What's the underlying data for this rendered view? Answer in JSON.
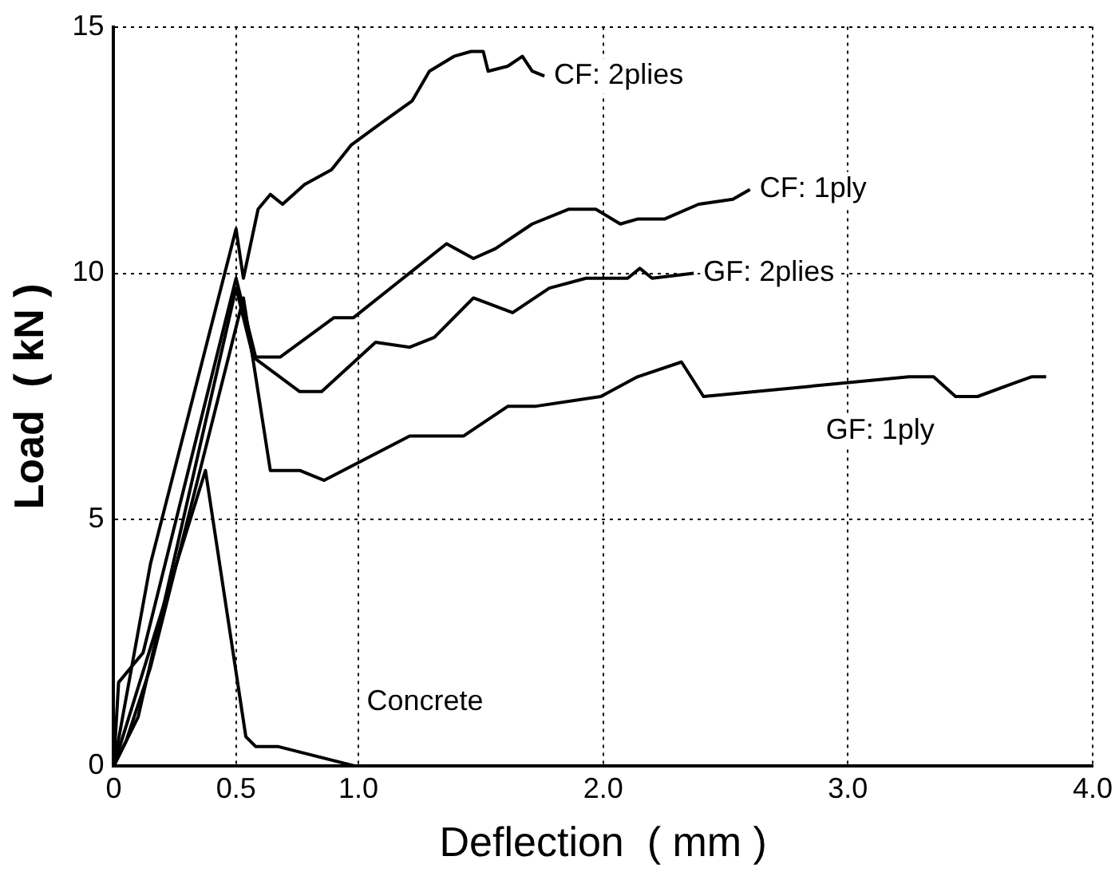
{
  "chart_data": {
    "type": "line",
    "xlabel": "Deflection  ( mm )",
    "ylabel": "Load  ( kN )",
    "xlim": [
      0,
      4
    ],
    "ylim": [
      0,
      15
    ],
    "xticks": [
      0,
      0.5,
      {
        "value": 1,
        "label": "1.0"
      },
      {
        "value": 2,
        "label": "2.0"
      },
      {
        "value": 3,
        "label": "3.0"
      },
      {
        "value": 4,
        "label": "4.0"
      }
    ],
    "yticks": [
      0,
      5,
      10,
      15
    ],
    "grid": true,
    "legend": false,
    "marker": "none",
    "line_style": "solid",
    "series": [
      {
        "name": "CF: 2plies",
        "color": "#000000",
        "x": [
          0,
          0.15,
          0.5,
          0.53,
          0.59,
          0.64,
          0.69,
          0.78,
          0.89,
          0.97,
          1.08,
          1.22,
          1.29,
          1.39,
          1.46,
          1.51,
          1.53,
          1.61,
          1.67,
          1.71,
          1.76
        ],
        "values": [
          0,
          4.1,
          10.9,
          9.9,
          11.3,
          11.6,
          11.4,
          11.8,
          12.1,
          12.6,
          13.0,
          13.5,
          14.1,
          14.4,
          14.5,
          14.5,
          14.1,
          14.2,
          14.4,
          14.1,
          14.0
        ]
      },
      {
        "name": "CF: 1ply",
        "color": "#000000",
        "x": [
          0,
          0.02,
          0.12,
          0.5,
          0.58,
          0.68,
          0.9,
          0.98,
          1.36,
          1.47,
          1.56,
          1.71,
          1.86,
          1.97,
          2.07,
          2.14,
          2.25,
          2.39,
          2.53,
          2.6
        ],
        "values": [
          0,
          1.7,
          2.3,
          9.9,
          8.3,
          8.3,
          9.1,
          9.1,
          10.6,
          10.3,
          10.5,
          11.0,
          11.3,
          11.3,
          11.0,
          11.1,
          11.1,
          11.4,
          11.5,
          11.7
        ]
      },
      {
        "name": "GF: 2plies",
        "color": "#000000",
        "x": [
          0,
          0.1,
          0.5,
          0.57,
          0.76,
          0.85,
          1.07,
          1.21,
          1.31,
          1.47,
          1.63,
          1.78,
          1.93,
          2.1,
          2.15,
          2.2,
          2.37
        ],
        "values": [
          0,
          1.0,
          9.7,
          8.3,
          7.6,
          7.6,
          8.6,
          8.5,
          8.7,
          9.5,
          9.2,
          9.7,
          9.9,
          9.9,
          10.1,
          9.9,
          10.0
        ]
      },
      {
        "name": "GF: 1ply",
        "color": "#000000",
        "x": [
          0,
          0.05,
          0.15,
          0.53,
          0.64,
          0.76,
          0.86,
          1.21,
          1.43,
          1.61,
          1.72,
          1.99,
          2.14,
          2.32,
          2.41,
          3.25,
          3.35,
          3.44,
          3.53,
          3.75,
          3.81
        ],
        "values": [
          0,
          0.5,
          2.0,
          9.5,
          6.0,
          6.0,
          5.8,
          6.7,
          6.7,
          7.3,
          7.3,
          7.5,
          7.9,
          8.2,
          7.5,
          7.9,
          7.9,
          7.5,
          7.5,
          7.9,
          7.9
        ]
      },
      {
        "name": "Concrete",
        "color": "#000000",
        "x": [
          0,
          0.375,
          0.54,
          0.58,
          0.67,
          0.99,
          1.32
        ],
        "values": [
          0,
          6.0,
          0.6,
          0.4,
          0.4,
          0,
          0
        ]
      }
    ]
  }
}
